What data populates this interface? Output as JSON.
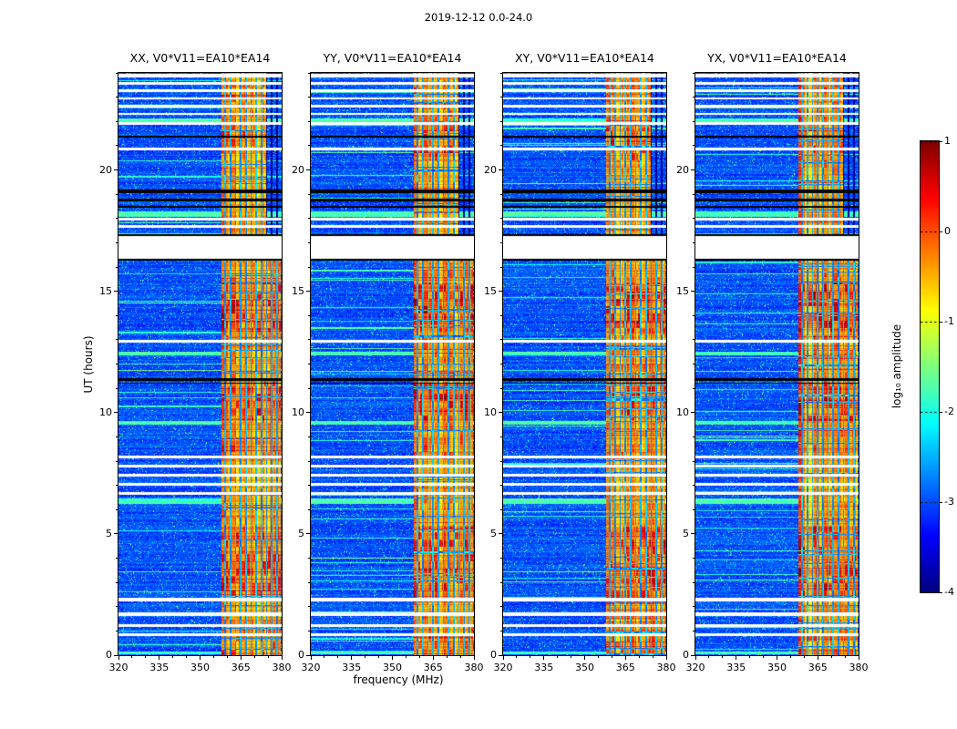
{
  "figure": {
    "suptitle": "2019-12-12 0.0-24.0",
    "xlabel": "frequency (MHz)",
    "ylabel": "UT (hours)"
  },
  "chart_data": {
    "type": "heatmap",
    "title": "2019-12-12 0.0-24.0",
    "xlabel": "frequency (MHz)",
    "ylabel": "UT (hours)",
    "x_range": [
      320,
      380
    ],
    "x_ticks": [
      320,
      335,
      350,
      365,
      380
    ],
    "x_minor_step": 5,
    "y_range": [
      0,
      24
    ],
    "y_ticks": [
      0,
      5,
      10,
      15,
      20
    ],
    "y_minor_step": 1,
    "value_range": [
      -4,
      1
    ],
    "colormap": "jet",
    "grid": false,
    "panels": [
      {
        "title": "XX, V0*V11=EA10*EA14",
        "seed": 101
      },
      {
        "title": "YY, V0*V11=EA10*EA14",
        "seed": 202
      },
      {
        "title": "XY, V0*V11=EA10*EA14",
        "seed": 303
      },
      {
        "title": "YX, V0*V11=EA10*EA14",
        "seed": 404
      }
    ],
    "colorbar": {
      "label": "log₁₀ amplitude",
      "ticks": [
        1,
        0,
        -1,
        -2,
        -3,
        -4
      ],
      "range": [
        -4,
        1
      ]
    },
    "features": {
      "band": {
        "f_start": 357.9,
        "f_end_low": 379.7,
        "f_end_high": 374.4,
        "split_hour": 17.3,
        "base_amp": -0.65
      },
      "dark_lines": [
        359.3,
        361.2,
        363.1,
        365.0,
        366.9,
        368.8,
        370.7,
        372.6,
        374.5,
        376.4,
        378.3
      ],
      "white_gap": [
        16.35,
        17.28
      ],
      "white_rows": [
        [
          23.82,
          23.95
        ],
        [
          23.52,
          23.64
        ],
        [
          23.22,
          23.33
        ],
        [
          22.9,
          23.0
        ],
        [
          22.56,
          22.68
        ],
        [
          22.26,
          22.36
        ],
        [
          21.86,
          21.98
        ],
        [
          20.8,
          20.92
        ],
        [
          17.92,
          18.03
        ],
        [
          17.62,
          17.72
        ],
        [
          12.9,
          13.0
        ],
        [
          8.1,
          8.21
        ],
        [
          7.73,
          7.84
        ],
        [
          7.36,
          7.47
        ],
        [
          6.99,
          7.1
        ],
        [
          6.62,
          6.73
        ],
        [
          2.22,
          2.35
        ],
        [
          1.62,
          1.75
        ],
        [
          1.17,
          1.29
        ],
        [
          0.77,
          0.89
        ]
      ],
      "black_rows": [
        [
          21.32,
          21.4
        ],
        [
          19.05,
          19.18
        ],
        [
          18.72,
          18.82
        ],
        [
          18.44,
          18.53
        ],
        [
          17.28,
          17.36
        ],
        [
          16.28,
          16.35
        ],
        [
          11.3,
          11.42
        ],
        [
          11.18,
          11.24
        ]
      ],
      "cyan_rows": [
        [
          6.25,
          6.45
        ],
        [
          12.35,
          12.52
        ],
        [
          18.05,
          18.3
        ],
        [
          21.99,
          22.12
        ],
        [
          0.02,
          0.14
        ],
        [
          9.52,
          9.64
        ]
      ],
      "hot_regions": [
        [
          0.0,
          1.15,
          0.6
        ],
        [
          1.15,
          2.35,
          0.35
        ],
        [
          2.35,
          5.3,
          0.9
        ],
        [
          5.3,
          6.95,
          0.4
        ],
        [
          6.95,
          8.05,
          0.3
        ],
        [
          8.05,
          9.7,
          0.55
        ],
        [
          9.7,
          11.28,
          0.95
        ],
        [
          11.28,
          13.35,
          0.5
        ],
        [
          13.35,
          15.35,
          1.0
        ],
        [
          15.35,
          16.35,
          0.45
        ],
        [
          17.3,
          20.35,
          0.35
        ],
        [
          20.35,
          21.75,
          0.75
        ],
        [
          21.75,
          24.0,
          0.5
        ]
      ]
    }
  }
}
